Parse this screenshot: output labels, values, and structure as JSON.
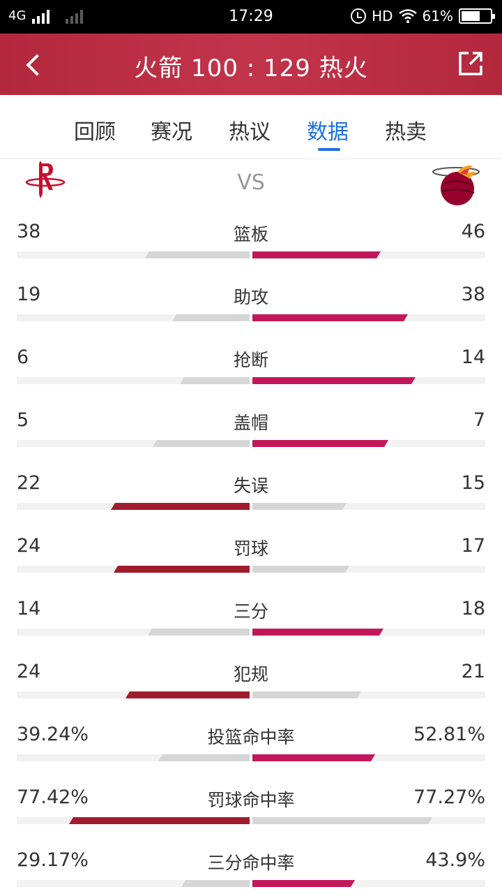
{
  "status_bar": {
    "network": "4G",
    "time": "17:29",
    "hd": "HD",
    "battery": "61%"
  },
  "header": {
    "title": "火箭 100 : 129 热火"
  },
  "tabs": [
    "回顾",
    "赛况",
    "热议",
    "数据",
    "热卖"
  ],
  "active_tab": "数据",
  "vs_label": "VS",
  "colors": {
    "header_bg": "#b3283d",
    "active_tab": "#1e6fe0",
    "heat_bar": "#c2185b",
    "rockets_bar": "#a01c2c",
    "lose_bar": "#d6d6d6"
  },
  "stats": [
    {
      "label": "篮板",
      "left": "38",
      "right": "46",
      "left_share": 0.45,
      "right_share": 0.55,
      "leader": "right"
    },
    {
      "label": "助攻",
      "left": "19",
      "right": "38",
      "left_share": 0.333,
      "right_share": 0.667,
      "leader": "right"
    },
    {
      "label": "抢断",
      "left": "6",
      "right": "14",
      "left_share": 0.3,
      "right_share": 0.7,
      "leader": "right"
    },
    {
      "label": "盖帽",
      "left": "5",
      "right": "7",
      "left_share": 0.417,
      "right_share": 0.583,
      "leader": "right"
    },
    {
      "label": "失误",
      "left": "22",
      "right": "15",
      "left_share": 0.595,
      "right_share": 0.405,
      "leader": "left"
    },
    {
      "label": "罚球",
      "left": "24",
      "right": "17",
      "left_share": 0.585,
      "right_share": 0.415,
      "leader": "left"
    },
    {
      "label": "三分",
      "left": "14",
      "right": "18",
      "left_share": 0.4375,
      "right_share": 0.5625,
      "leader": "right"
    },
    {
      "label": "犯规",
      "left": "24",
      "right": "21",
      "left_share": 0.533,
      "right_share": 0.467,
      "leader": "left"
    },
    {
      "label": "投篮命中率",
      "left": "39.24%",
      "right": "52.81%",
      "left_share": 0.392,
      "right_share": 0.528,
      "leader": "right"
    },
    {
      "label": "罚球命中率",
      "left": "77.42%",
      "right": "77.27%",
      "left_share": 0.774,
      "right_share": 0.773,
      "leader": "left"
    },
    {
      "label": "三分命中率",
      "left": "29.17%",
      "right": "43.9%",
      "left_share": 0.292,
      "right_share": 0.439,
      "leader": "right"
    }
  ]
}
